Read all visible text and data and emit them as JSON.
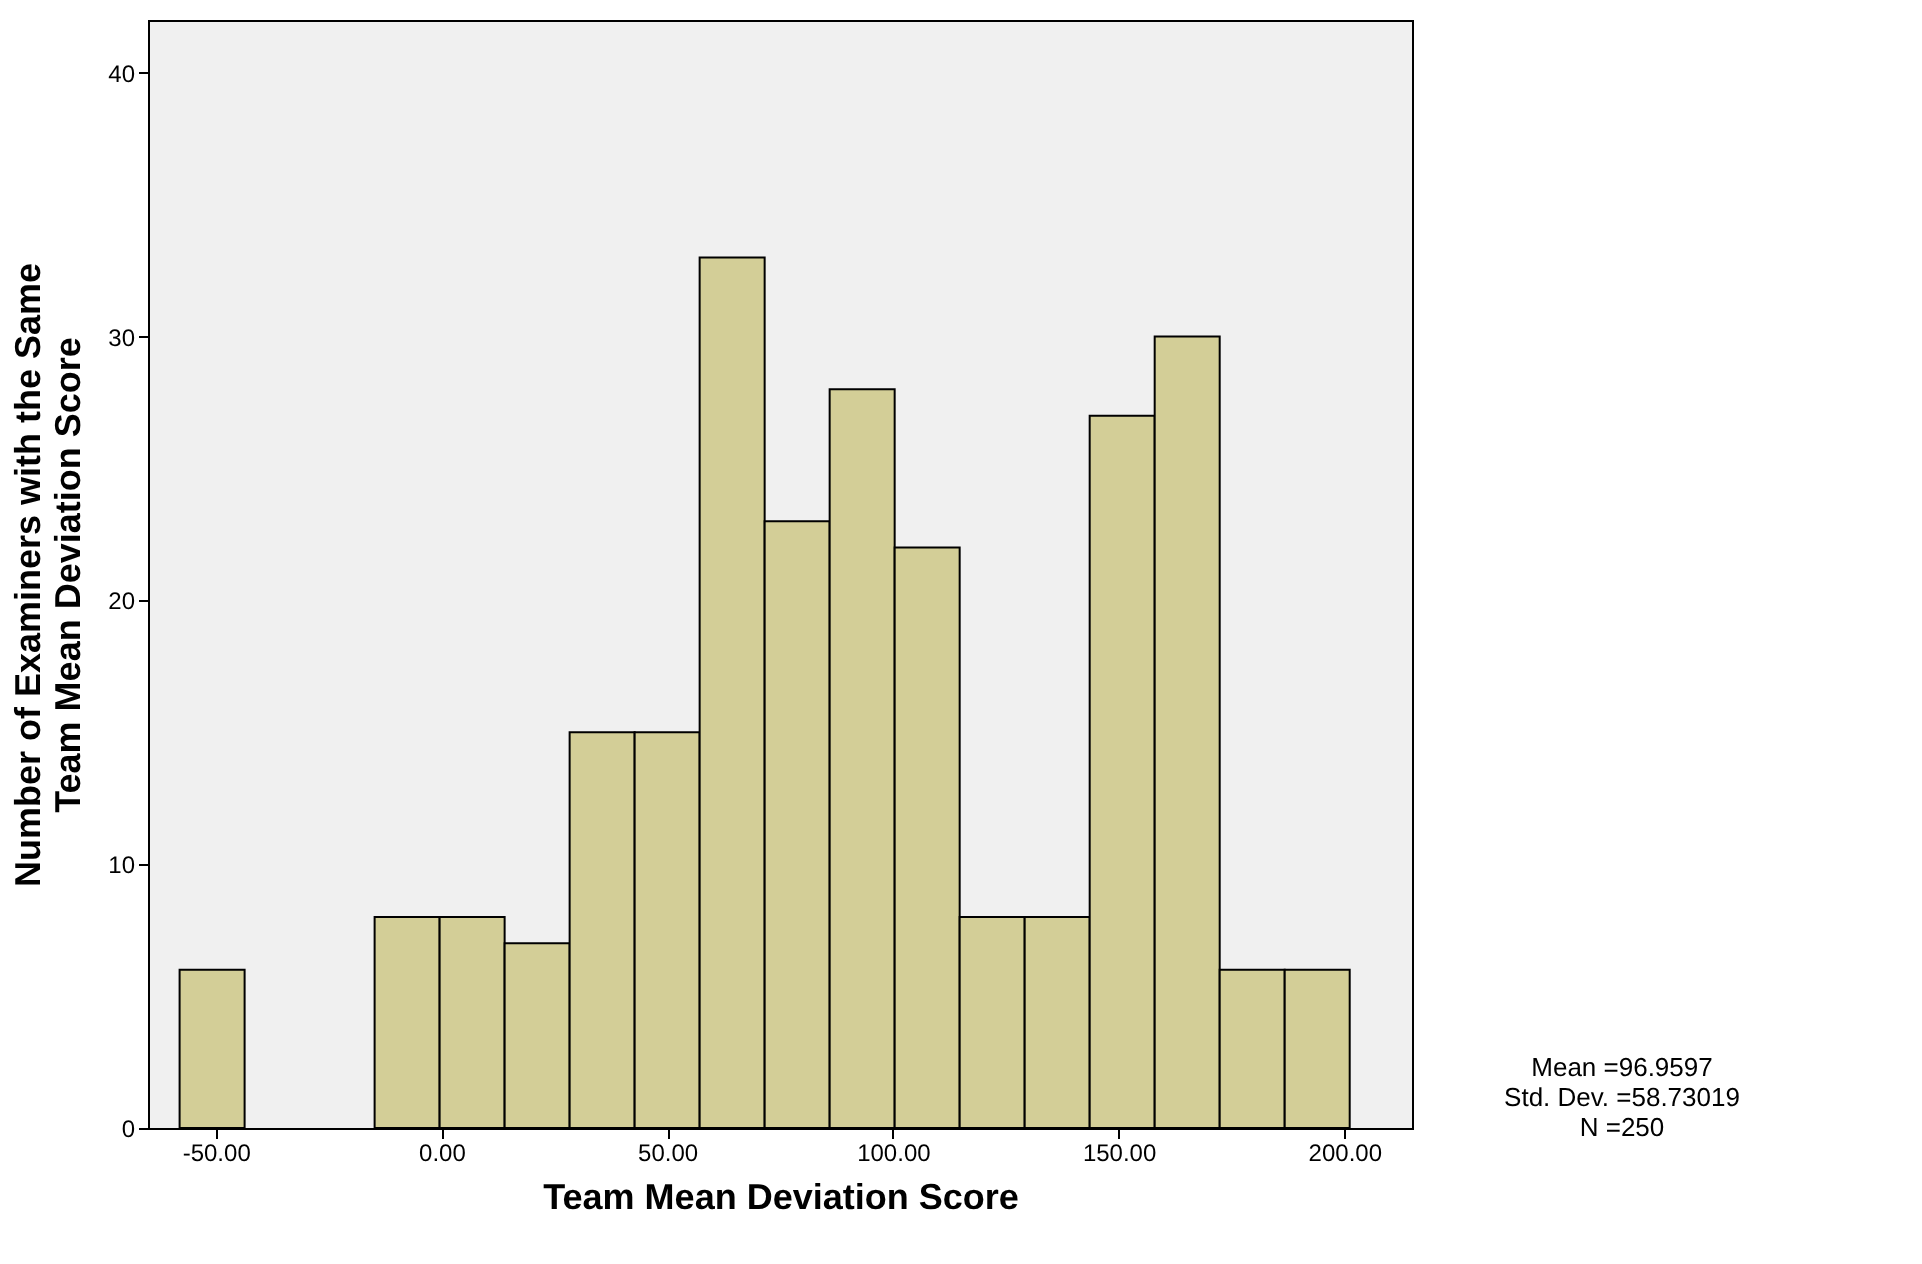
{
  "chart_data": {
    "type": "histogram",
    "xlabel": "Team Mean Deviation Score",
    "ylabel": "Number of Examiners with the Same\nTeam Mean Deviation Score",
    "bins": [
      -58,
      -43.6,
      -29.2,
      -14.8,
      -0.4,
      14,
      28.4,
      42.8,
      57.2,
      71.6,
      86,
      100.4,
      114.8,
      129.2,
      143.6,
      158,
      172.4,
      186.8,
      201.2
    ],
    "values": [
      6,
      0,
      0,
      8,
      8,
      7,
      15,
      15,
      33,
      23,
      28,
      22,
      8,
      8,
      27,
      30,
      6,
      6
    ],
    "color": "#d3ce97",
    "xlim": [
      -65,
      215
    ],
    "xticks": [
      {
        "value": -50,
        "label": "-50.00"
      },
      {
        "value": 0,
        "label": "0.00"
      },
      {
        "value": 50,
        "label": "50.00"
      },
      {
        "value": 100,
        "label": "100.00"
      },
      {
        "value": 150,
        "label": "150.00"
      },
      {
        "value": 200,
        "label": "200.00"
      }
    ],
    "ylim": [
      0,
      42
    ],
    "yticks": [
      0,
      10,
      20,
      30,
      40
    ],
    "grid": false,
    "annotations": [
      "Mean =96.9597",
      "Std. Dev. =58.73019",
      "N =250"
    ]
  }
}
